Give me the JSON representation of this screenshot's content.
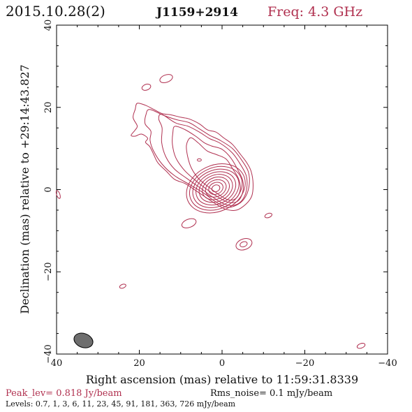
{
  "header": {
    "date": "2015.10.28(2)",
    "source": "J1159+2914",
    "freq": "Freq: 4.3 GHz"
  },
  "footer": {
    "peak": "Peak_lev=  0.818 Jy/beam",
    "rms": "Rms_noise=  0.1 mJy/beam",
    "levels": "Levels: 0.7,   1,   3,   6,  11,  23,  45,  91, 181, 363, 726 mJy/beam"
  },
  "colors": {
    "contour": "#b03050",
    "beam_fill": "#6e6e6e"
  },
  "chart_data": {
    "type": "contour",
    "title": "",
    "xlabel": "Right ascension (mas) relative to 11:59:31.8339",
    "ylabel": "Declination (mas) relative to +29:14:43.827",
    "xlim": [
      40,
      -40
    ],
    "ylim": [
      -40,
      40
    ],
    "xticks": [
      40,
      20,
      0,
      -20,
      -40
    ],
    "yticks": [
      -40,
      -20,
      0,
      20,
      40
    ],
    "xtick_labels": [
      "40",
      "20",
      "0",
      "−20",
      "−40"
    ],
    "ytick_labels": [
      "−40",
      "−20",
      "0",
      "20",
      "40"
    ],
    "levels_mJy_per_beam": [
      0.7,
      1,
      3,
      6,
      11,
      23,
      45,
      91,
      181,
      363,
      726
    ],
    "peak_Jy_per_beam": 0.818,
    "rms_noise_mJy_per_beam": 0.1,
    "core": {
      "x": 1.5,
      "y": 0.3
    },
    "beam": {
      "x": 33.5,
      "y": -36.7,
      "major": 4.7,
      "minor": 3.4,
      "pa_deg": -20
    },
    "outer_contour": [
      [
        20.5,
        21
      ],
      [
        18.5,
        20.5
      ],
      [
        16.5,
        19.5
      ],
      [
        14.5,
        18.5
      ],
      [
        12.5,
        18.2
      ],
      [
        10,
        17.6
      ],
      [
        8,
        17.2
      ],
      [
        5.5,
        16
      ],
      [
        3.5,
        14.5
      ],
      [
        1.5,
        14
      ],
      [
        -0.5,
        12.5
      ],
      [
        -2.5,
        11
      ],
      [
        -4.5,
        8.5
      ],
      [
        -6,
        6.5
      ],
      [
        -7,
        4.5
      ],
      [
        -7.5,
        1.5
      ],
      [
        -7.2,
        -1.5
      ],
      [
        -5.8,
        -3.5
      ],
      [
        -3.5,
        -5
      ],
      [
        -1,
        -4.8
      ],
      [
        1.5,
        -3.5
      ],
      [
        4.5,
        -1.5
      ],
      [
        7,
        0.2
      ],
      [
        9,
        1.5
      ],
      [
        11.5,
        2.5
      ],
      [
        13.5,
        4.5
      ],
      [
        15.5,
        6.5
      ],
      [
        16.5,
        8.5
      ],
      [
        17.5,
        10.5
      ],
      [
        18.5,
        11.5
      ],
      [
        18,
        12.5
      ],
      [
        19.5,
        13.5
      ],
      [
        21,
        13
      ],
      [
        22,
        13.2
      ],
      [
        21,
        14.5
      ],
      [
        20.5,
        15.5
      ],
      [
        21.5,
        17.5
      ],
      [
        21,
        19.5
      ]
    ],
    "secondary_contours": [
      [
        [
          17.5,
          19.5
        ],
        [
          14,
          18
        ],
        [
          11,
          17
        ],
        [
          8,
          16.3
        ],
        [
          5.5,
          14.8
        ],
        [
          3,
          13.2
        ],
        [
          0.5,
          12
        ],
        [
          -2.5,
          10
        ],
        [
          -4.5,
          7.5
        ],
        [
          -6.3,
          4.5
        ],
        [
          -6.6,
          1.5
        ],
        [
          -5.8,
          -1.5
        ],
        [
          -4,
          -3.5
        ],
        [
          -1.2,
          -4.3
        ],
        [
          1.8,
          -2.8
        ],
        [
          4.5,
          -0.8
        ],
        [
          7.8,
          1.2
        ],
        [
          11.5,
          3.4
        ],
        [
          14.5,
          6.2
        ],
        [
          16.6,
          9.5
        ],
        [
          17.4,
          12
        ],
        [
          17.2,
          14.2
        ],
        [
          18.6,
          16
        ],
        [
          18.4,
          18.2
        ]
      ],
      [
        [
          14.6,
          18.3
        ],
        [
          11.2,
          16.2
        ],
        [
          8.2,
          15.4
        ],
        [
          5.5,
          14
        ],
        [
          3,
          12.4
        ],
        [
          0.5,
          11.3
        ],
        [
          -2.4,
          9
        ],
        [
          -4.2,
          6.5
        ],
        [
          -5.8,
          3.5
        ],
        [
          -6,
          0.5
        ],
        [
          -5,
          -2.4
        ],
        [
          -3,
          -3.8
        ],
        [
          -0.5,
          -3.5
        ],
        [
          2.3,
          -1.8
        ],
        [
          5,
          0.2
        ],
        [
          8.2,
          2.5
        ],
        [
          11.5,
          5
        ],
        [
          13.6,
          8
        ],
        [
          14.6,
          11.5
        ],
        [
          14.5,
          15
        ],
        [
          15.3,
          17.2
        ]
      ],
      [
        [
          11.4,
          15.4
        ],
        [
          9,
          14.6
        ],
        [
          6.4,
          13
        ],
        [
          4.3,
          11.4
        ],
        [
          2.5,
          10.6
        ],
        [
          0,
          9.8
        ],
        [
          -2.2,
          7.6
        ],
        [
          -3.8,
          4.8
        ],
        [
          -5,
          2.2
        ],
        [
          -5,
          -0.6
        ],
        [
          -3.8,
          -2.8
        ],
        [
          -1.6,
          -3.1
        ],
        [
          1,
          -1.8
        ],
        [
          3.6,
          0
        ],
        [
          6.4,
          2.2
        ],
        [
          9.2,
          4.8
        ],
        [
          11.2,
          7.8
        ],
        [
          12,
          11
        ],
        [
          11.9,
          13.8
        ]
      ],
      [
        [
          7.6,
          12.6
        ],
        [
          5.8,
          11.4
        ],
        [
          3.6,
          9.4
        ],
        [
          1.3,
          8.5
        ],
        [
          -1,
          7.4
        ],
        [
          -2.6,
          5
        ],
        [
          -4,
          2.6
        ],
        [
          -4.4,
          0
        ],
        [
          -3.4,
          -2.1
        ],
        [
          -1.5,
          -2.5
        ],
        [
          0.8,
          -1.2
        ],
        [
          3.2,
          0.6
        ],
        [
          5.6,
          2.6
        ],
        [
          7.4,
          5.2
        ],
        [
          8.3,
          8
        ],
        [
          8.6,
          10.8
        ]
      ]
    ],
    "core_rings": [
      {
        "a": 7.4,
        "b": 5.6
      },
      {
        "a": 6.6,
        "b": 5.0
      },
      {
        "a": 5.8,
        "b": 4.4
      },
      {
        "a": 5.0,
        "b": 3.8
      },
      {
        "a": 4.2,
        "b": 3.2
      },
      {
        "a": 3.4,
        "b": 2.6
      },
      {
        "a": 2.6,
        "b": 2.0
      },
      {
        "a": 1.8,
        "b": 1.4
      },
      {
        "a": 1.0,
        "b": 0.8
      }
    ],
    "core_ring_pa_deg": -25,
    "islands": [
      {
        "x": 13.5,
        "y": 27.0,
        "a": 1.6,
        "b": 0.9,
        "pa": -20
      },
      {
        "x": 18.3,
        "y": 24.9,
        "a": 1.1,
        "b": 0.7,
        "pa": -20
      },
      {
        "x": 8.0,
        "y": -8.2,
        "a": 1.8,
        "b": 1.0,
        "pa": -20
      },
      {
        "x": -5.3,
        "y": -13.3,
        "a": 2.0,
        "b": 1.3,
        "pa": -20
      },
      {
        "x": -5.2,
        "y": -13.3,
        "a": 0.9,
        "b": 0.6,
        "pa": -20
      },
      {
        "x": -11.2,
        "y": -6.3,
        "a": 0.9,
        "b": 0.5,
        "pa": -20
      },
      {
        "x": 24.0,
        "y": -23.5,
        "a": 0.8,
        "b": 0.45,
        "pa": -20
      },
      {
        "x": -33.6,
        "y": -38.0,
        "a": 1.0,
        "b": 0.55,
        "pa": -20
      },
      {
        "x": 39.6,
        "y": -1.2,
        "a": 1.0,
        "b": 0.4,
        "pa": 70
      },
      {
        "x": 5.5,
        "y": 7.2,
        "a": 0.5,
        "b": 0.3,
        "pa": 0
      }
    ]
  }
}
